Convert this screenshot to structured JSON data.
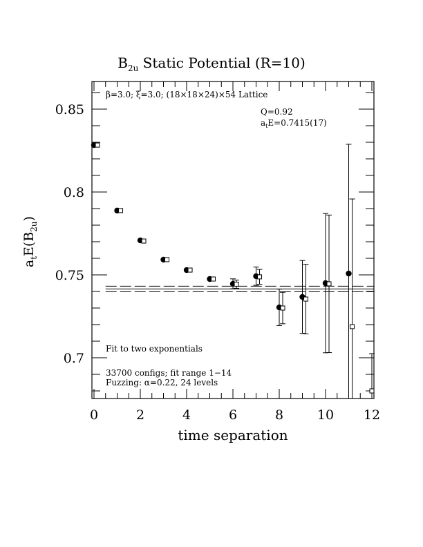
{
  "chart_data": {
    "type": "scatter",
    "title_main": "B",
    "title_sub": "2u",
    "title_rest": " Static Potential (R=10)",
    "xlabel": "time separation",
    "ylabel_main": "a",
    "ylabel_sub1": "t",
    "ylabel_mid": "E(B",
    "ylabel_sub2": "2u",
    "ylabel_end": ")",
    "xlim": [
      -0.1,
      12.1
    ],
    "ylim": [
      0.6754,
      0.8667
    ],
    "xticks": [
      0,
      2,
      4,
      6,
      8,
      10,
      12
    ],
    "xtick_labels": [
      "0",
      "2",
      "4",
      "6",
      "8",
      "10",
      "12"
    ],
    "yticks": [
      0.7,
      0.75,
      0.8,
      0.85
    ],
    "ytick_labels": [
      "0.7",
      "0.75",
      "0.8",
      "0.85"
    ],
    "annotations": {
      "lattice": "β=3.0; ξ=3.0; (18×18×24)×54 Lattice",
      "q": "Q=0.92",
      "energy_main": "a",
      "energy_sub": "t",
      "energy_rest": "E=0.7415(17)",
      "fit": "Fit to two exponentials",
      "configs": "33700 configs; fit range 1−14",
      "fuzzing": "Fuzzing: α=0.22, 24 levels"
    },
    "series": [
      {
        "name": "data",
        "marker": "filled-circle",
        "x": [
          0,
          1,
          2,
          3,
          4,
          5,
          6,
          7,
          8,
          9,
          10,
          11
        ],
        "y": [
          0.8283,
          0.7888,
          0.7708,
          0.7592,
          0.7529,
          0.7475,
          0.7446,
          0.7492,
          0.7304,
          0.7367,
          0.745,
          0.7508
        ],
        "err": [
          0.0008,
          0.0008,
          0.001,
          0.001,
          0.001,
          0.0012,
          0.003,
          0.0055,
          0.011,
          0.022,
          0.042,
          0.078
        ]
      },
      {
        "name": "fit-points",
        "marker": "open-square",
        "x": [
          0.15,
          1.15,
          2.15,
          3.15,
          4.15,
          5.15,
          6.15,
          7.15,
          8.15,
          9.15,
          10.15,
          11.15,
          12.0
        ],
        "y": [
          0.8283,
          0.7888,
          0.7704,
          0.7592,
          0.7529,
          0.7475,
          0.7444,
          0.7488,
          0.73,
          0.7354,
          0.7446,
          0.7188,
          0.68
        ],
        "err": [
          0.0008,
          0.0008,
          0.001,
          0.001,
          0.001,
          0.0012,
          0.0025,
          0.0045,
          0.0095,
          0.021,
          0.0415,
          0.077,
          0.0225
        ]
      }
    ],
    "fit": {
      "value": 0.7415,
      "error": 0.0017,
      "x_range": [
        0.5,
        12.1
      ]
    }
  }
}
